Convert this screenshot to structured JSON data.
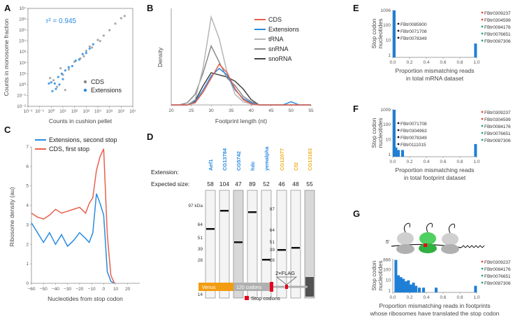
{
  "chart_data": [
    {
      "panel": "A",
      "type": "scatter",
      "xlabel": "Counts in cushion pellet",
      "ylabel": "Counts in monosome fraction",
      "x_ticks": [
        "10⁻²",
        "10⁻¹",
        "10⁰",
        "10¹",
        "10²",
        "10³",
        "10⁴",
        "10⁵",
        "10⁶",
        "10⁷"
      ],
      "y_ticks": [
        "10⁻²",
        "10⁻¹",
        "10⁰",
        "10¹",
        "10²",
        "10³",
        "10⁴",
        "10⁵",
        "10⁶",
        "10⁷"
      ],
      "annotation": "r² = 0.945",
      "legend": [
        "CDS",
        "Extensions"
      ],
      "xlim_log10": [
        -2,
        7
      ],
      "ylim_log10": [
        -2,
        7
      ],
      "series": [
        {
          "name": "CDS",
          "points_log10": [
            [
              1,
              0.9
            ],
            [
              1.5,
              1.4
            ],
            [
              2,
              2.1
            ],
            [
              2.5,
              2.4
            ],
            [
              3,
              3.1
            ],
            [
              3.5,
              3.4
            ],
            [
              4,
              4.1
            ],
            [
              4.5,
              4.5
            ],
            [
              5,
              5
            ],
            [
              5.5,
              5.6
            ],
            [
              6,
              6.1
            ],
            [
              6.3,
              6.3
            ],
            [
              2.8,
              2.6
            ],
            [
              3.3,
              3.5
            ],
            [
              4.2,
              4.0
            ],
            [
              0.5,
              -0.2
            ],
            [
              0.2,
              0.4
            ],
            [
              1.2,
              -0.5
            ],
            [
              -0.1,
              0.6
            ],
            [
              0.8,
              1.5
            ]
          ]
        },
        {
          "name": "Extensions",
          "points_log10": [
            [
              0,
              0.2
            ],
            [
              0.3,
              0.1
            ],
            [
              0.6,
              0.7
            ],
            [
              0.9,
              1.0
            ],
            [
              1.2,
              1.3
            ],
            [
              1.5,
              1.6
            ],
            [
              1.8,
              1.7
            ],
            [
              2.1,
              2.2
            ],
            [
              2.4,
              2.3
            ],
            [
              2.7,
              2.8
            ],
            [
              3.0,
              2.9
            ],
            [
              3.3,
              3.3
            ],
            [
              3.6,
              3.7
            ],
            [
              0.1,
              -0.6
            ],
            [
              0.4,
              -0.4
            ],
            [
              0.7,
              0.0
            ],
            [
              1.0,
              0.5
            ],
            [
              -0.2,
              0.1
            ]
          ]
        }
      ]
    },
    {
      "panel": "B",
      "type": "line",
      "xlabel": "Footprint length (nt)",
      "ylabel": "Density",
      "x": [
        20,
        22,
        24,
        26,
        28,
        30,
        32,
        34,
        36,
        38,
        40,
        42,
        44,
        46,
        48,
        50,
        52,
        55
      ],
      "xlim": [
        20,
        55
      ],
      "x_ticks": [
        "20",
        "25",
        "30",
        "35",
        "40",
        "45",
        "50",
        "55"
      ],
      "series": [
        {
          "name": "CDS",
          "color": "#e8604c",
          "values": [
            0,
            0,
            0,
            0.02,
            0.12,
            0.25,
            0.38,
            0.3,
            0.15,
            0.05,
            0.01,
            0,
            0,
            0,
            0,
            0,
            0,
            0
          ]
        },
        {
          "name": "Extensions",
          "color": "#2a8be0",
          "values": [
            0,
            0,
            0,
            0.03,
            0.14,
            0.27,
            0.34,
            0.28,
            0.14,
            0.06,
            0.02,
            0,
            0,
            0,
            0,
            0.03,
            0,
            0
          ]
        },
        {
          "name": "tRNA",
          "color": "#b5b5b5",
          "values": [
            0,
            0,
            0,
            0.05,
            0.35,
            0.82,
            0.62,
            0.3,
            0.1,
            0.03,
            0.01,
            0,
            0,
            0,
            0,
            0,
            0,
            0
          ]
        },
        {
          "name": "snRNA",
          "color": "#8a8a8a",
          "values": [
            0,
            0,
            0.02,
            0.1,
            0.3,
            0.55,
            0.4,
            0.25,
            0.18,
            0.08,
            0.03,
            0,
            0,
            0,
            0,
            0,
            0,
            0
          ]
        },
        {
          "name": "snoRNA",
          "color": "#444444",
          "values": [
            0,
            0,
            0,
            0.04,
            0.18,
            0.3,
            0.28,
            0.26,
            0.22,
            0.15,
            0.05,
            0,
            0,
            0,
            0,
            0,
            0,
            0
          ]
        }
      ]
    },
    {
      "panel": "C",
      "type": "line",
      "xlabel": "Nucleotides from stop codon",
      "ylabel": "Ribosome density (au)",
      "x": [
        -60,
        -55,
        -50,
        -45,
        -40,
        -35,
        -30,
        -25,
        -20,
        -15,
        -12,
        -9,
        -6,
        -3,
        0,
        3,
        6,
        9
      ],
      "xlim": [
        -60,
        30
      ],
      "ylim": [
        0,
        7
      ],
      "x_ticks": [
        "−60",
        "−50",
        "−40",
        "−30",
        "−20",
        "−10",
        "0",
        "10",
        "20"
      ],
      "y_ticks": [
        "0",
        "1",
        "2",
        "3",
        "4",
        "5",
        "6",
        "7"
      ],
      "series": [
        {
          "name": "Extensions, second stop",
          "color": "#2a8be0",
          "values": [
            3.1,
            2.6,
            2.1,
            2.6,
            2.0,
            2.5,
            1.9,
            2.2,
            2.6,
            2.3,
            2.1,
            2.6,
            4.6,
            4.1,
            3.5,
            0.6,
            0.1,
            0
          ]
        },
        {
          "name": "CDS, first stop",
          "color": "#e8604c",
          "values": [
            3.6,
            3.4,
            3.3,
            3.5,
            3.8,
            3.6,
            3.7,
            3.8,
            3.9,
            3.6,
            4.1,
            4.4,
            5.8,
            6.5,
            6.9,
            2.5,
            0.4,
            0
          ]
        }
      ]
    },
    {
      "panel": "E",
      "type": "bar",
      "xlabel": "Proportion mismatching reads\nin total mRNA dataset",
      "ylabel": "Stop codon nucleotides",
      "y_ticks": [
        "1006",
        "100",
        "10",
        "1"
      ],
      "x_ticks": [
        "0.0",
        "0.2",
        "0.4",
        "0.6",
        "0.8",
        "1.0"
      ],
      "bars": [
        {
          "x": 0.0,
          "count": 1006
        },
        {
          "x": 0.97,
          "count": 6
        }
      ],
      "left_labels": [
        "FBtr0085900",
        "FBtr0071708",
        "FBtr0078349"
      ],
      "right_labels": [
        {
          "text": "FBtr0309237",
          "color": "#e74c3c"
        },
        {
          "text": "FBtr0304599",
          "color": "#e74c3c"
        },
        {
          "text": "FBtr0084176",
          "color": "#1aaa7a"
        },
        {
          "text": "FBtr0076651",
          "color": "#1aaa7a"
        },
        {
          "text": "FBtr0087306",
          "color": "#1aaa7a"
        }
      ]
    },
    {
      "panel": "F",
      "type": "bar",
      "xlabel": "Proportion mismatching reads\nin total footprint dataset",
      "ylabel": "Stop codon nucleotides",
      "y_ticks": [
        "1009",
        "100",
        "10",
        "1"
      ],
      "x_ticks": [
        "0.0",
        "0.2",
        "0.4",
        "0.6",
        "0.8",
        "1.0"
      ],
      "bars": [
        {
          "x": 0.0,
          "count": 1009
        },
        {
          "x": 0.02,
          "count": 3
        },
        {
          "x": 0.05,
          "count": 2
        },
        {
          "x": 0.1,
          "count": 2
        },
        {
          "x": 0.97,
          "count": 5
        }
      ],
      "left_labels": [
        "FBtr0071708",
        "FBtr0304963",
        "FBtr0078349",
        "FBtr0111015"
      ],
      "right_labels": [
        {
          "text": "FBtr0309237",
          "color": "#e74c3c"
        },
        {
          "text": "FBtr0304599",
          "color": "#e74c3c"
        },
        {
          "text": "FBtr0084176",
          "color": "#1aaa7a"
        },
        {
          "text": "FBtr0076651",
          "color": "#1aaa7a"
        },
        {
          "text": "FBtr0087306",
          "color": "#1aaa7a"
        }
      ]
    },
    {
      "panel": "G",
      "type": "bar",
      "xlabel": "Proportion mismatching reads in footprints\nwhose ribosomes have translated the stop codon",
      "ylabel": "Stop codon nucleotides",
      "y_ticks": [
        "866",
        "100",
        "10",
        "1"
      ],
      "x_ticks": [
        "0.0",
        "0.2",
        "0.4",
        "0.6",
        "0.8",
        "1.0"
      ],
      "bars": [
        {
          "x": 0.02,
          "count": 866
        },
        {
          "x": 0.05,
          "count": 30
        },
        {
          "x": 0.08,
          "count": 20
        },
        {
          "x": 0.11,
          "count": 14
        },
        {
          "x": 0.14,
          "count": 8
        },
        {
          "x": 0.17,
          "count": 10
        },
        {
          "x": 0.2,
          "count": 4
        },
        {
          "x": 0.23,
          "count": 6
        },
        {
          "x": 0.26,
          "count": 3
        },
        {
          "x": 0.3,
          "count": 2
        },
        {
          "x": 0.35,
          "count": 2
        },
        {
          "x": 0.5,
          "count": 2
        },
        {
          "x": 0.97,
          "count": 3
        }
      ],
      "right_labels": [
        {
          "text": "FBtr0309237",
          "color": "#e74c3c"
        },
        {
          "text": "FBtr0084176",
          "color": "#1aaa7a"
        },
        {
          "text": "FBtr0076651",
          "color": "#1aaa7a"
        },
        {
          "text": "FBtr0087306",
          "color": "#1aaa7a"
        }
      ]
    }
  ],
  "panel_d": {
    "row_extension": "Extension:",
    "row_size": "Expected size:",
    "genes_left": [
      {
        "name": "Aef1",
        "size": "58",
        "color": "#2a8be0"
      },
      {
        "name": "CG13784",
        "size": "104",
        "color": "#2a8be0"
      },
      {
        "name": "CG5742",
        "size": "47",
        "color": "#2a8be0"
      },
      {
        "name": "hdc",
        "size": "89",
        "color": "#2a8be0"
      },
      {
        "name": "yemalpha",
        "size": "52",
        "color": "#2a8be0"
      }
    ],
    "genes_right": [
      {
        "name": "CG12077",
        "size": "46",
        "color": "#f0b020"
      },
      {
        "name": "Cf2",
        "size": "48",
        "color": "#f0b020"
      },
      {
        "name": "CG13163",
        "size": "55",
        "color": "#f0b020"
      }
    ],
    "markers_left": [
      "97 kDa",
      "64",
      "51",
      "39",
      "28",
      "14"
    ],
    "markers_right": [
      "97",
      "64",
      "51",
      "39",
      "28"
    ],
    "construct": {
      "venus": "Venus",
      "codons": "120 codons",
      "flag": "2×FLAG",
      "stop_legend": "Stop codons"
    }
  },
  "panel_labels": [
    "A",
    "B",
    "C",
    "D",
    "E",
    "F",
    "G"
  ],
  "colors": {
    "blue": "#2a8be0",
    "red": "#e8604c",
    "gray": "#9a9a9a",
    "green": "#1aaa7a",
    "orange": "#f39c12"
  }
}
